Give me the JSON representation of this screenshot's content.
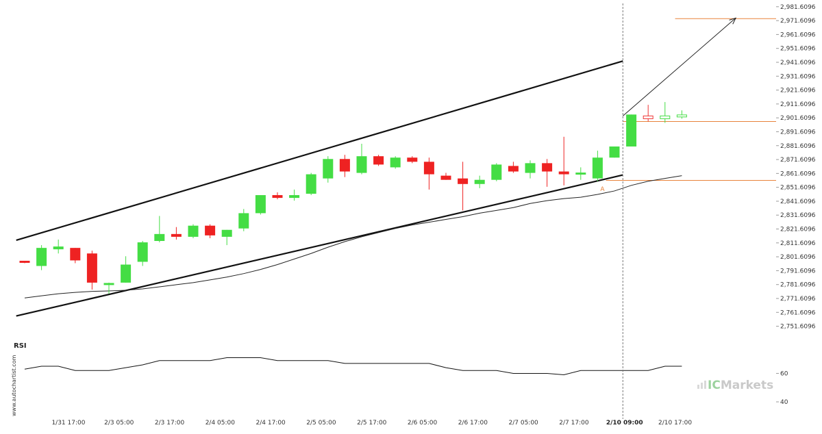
{
  "chart_data": {
    "type": "candlestick",
    "y_ticks": [
      "2,981.6096",
      "2,971.6096",
      "2,961.6096",
      "2,951.6096",
      "2,941.6096",
      "2,931.6096",
      "2,921.6096",
      "2,911.6096",
      "2,901.6096",
      "2,891.6096",
      "2,881.6096",
      "2,871.6096",
      "2,861.6096",
      "2,851.6096",
      "2,841.6096",
      "2,831.6096",
      "2,821.6096",
      "2,811.6096",
      "2,801.6096",
      "2,791.6096",
      "2,781.6096",
      "2,771.6096",
      "2,761.6096",
      "2,751.6096"
    ],
    "ylim": [
      2745,
      2983
    ],
    "x_labels": [
      {
        "text": "1/31 17:00",
        "index": 2.6
      },
      {
        "text": "2/3 05:00",
        "index": 5.6
      },
      {
        "text": "2/3 17:00",
        "index": 8.6
      },
      {
        "text": "2/4 05:00",
        "index": 11.6
      },
      {
        "text": "2/4 17:00",
        "index": 14.6
      },
      {
        "text": "2/5 05:00",
        "index": 17.6
      },
      {
        "text": "2/5 17:00",
        "index": 20.6
      },
      {
        "text": "2/6 05:00",
        "index": 23.6
      },
      {
        "text": "2/6 17:00",
        "index": 26.6
      },
      {
        "text": "2/7 05:00",
        "index": 29.6
      },
      {
        "text": "2/7 17:00",
        "index": 32.6
      },
      {
        "text": "2/10 09:00",
        "index": 35.6,
        "bold": true
      },
      {
        "text": "2/10 17:00",
        "index": 38.6
      }
    ],
    "candles": [
      {
        "o": 2798.5,
        "h": 2798.5,
        "l": 2797.0,
        "c": 2797.5
      },
      {
        "o": 2795,
        "h": 2810,
        "l": 2792,
        "c": 2808
      },
      {
        "o": 2807,
        "h": 2814,
        "l": 2804,
        "c": 2809
      },
      {
        "o": 2808,
        "h": 2808,
        "l": 2797,
        "c": 2799
      },
      {
        "o": 2804,
        "h": 2806,
        "l": 2778,
        "c": 2783
      },
      {
        "o": 2782,
        "h": 2783,
        "l": 2775,
        "c": 2782
      },
      {
        "o": 2783,
        "h": 2802,
        "l": 2783,
        "c": 2796
      },
      {
        "o": 2798,
        "h": 2813,
        "l": 2795,
        "c": 2812
      },
      {
        "o": 2813,
        "h": 2831,
        "l": 2812,
        "c": 2818
      },
      {
        "o": 2818,
        "h": 2823,
        "l": 2814,
        "c": 2816
      },
      {
        "o": 2816,
        "h": 2825,
        "l": 2815,
        "c": 2824
      },
      {
        "o": 2824,
        "h": 2825,
        "l": 2815,
        "c": 2817
      },
      {
        "o": 2816,
        "h": 2821,
        "l": 2810,
        "c": 2821
      },
      {
        "o": 2822,
        "h": 2836,
        "l": 2820,
        "c": 2833
      },
      {
        "o": 2833,
        "h": 2846,
        "l": 2832,
        "c": 2846
      },
      {
        "o": 2846,
        "h": 2848,
        "l": 2843,
        "c": 2844
      },
      {
        "o": 2844,
        "h": 2850,
        "l": 2842,
        "c": 2846
      },
      {
        "o": 2847,
        "h": 2862,
        "l": 2846,
        "c": 2861
      },
      {
        "o": 2858,
        "h": 2874,
        "l": 2855,
        "c": 2872
      },
      {
        "o": 2872,
        "h": 2875,
        "l": 2859,
        "c": 2863
      },
      {
        "o": 2862,
        "h": 2883,
        "l": 2861,
        "c": 2874
      },
      {
        "o": 2874,
        "h": 2875,
        "l": 2867,
        "c": 2868
      },
      {
        "o": 2866,
        "h": 2874,
        "l": 2865,
        "c": 2873
      },
      {
        "o": 2873,
        "h": 2874,
        "l": 2869,
        "c": 2870
      },
      {
        "o": 2870,
        "h": 2873,
        "l": 2850,
        "c": 2861
      },
      {
        "o": 2860,
        "h": 2862,
        "l": 2857,
        "c": 2857
      },
      {
        "o": 2858,
        "h": 2870,
        "l": 2835,
        "c": 2854
      },
      {
        "o": 2854,
        "h": 2860,
        "l": 2851,
        "c": 2857
      },
      {
        "o": 2857,
        "h": 2869,
        "l": 2856,
        "c": 2868
      },
      {
        "o": 2867,
        "h": 2870,
        "l": 2862,
        "c": 2863
      },
      {
        "o": 2862,
        "h": 2871,
        "l": 2858,
        "c": 2869
      },
      {
        "o": 2869,
        "h": 2872,
        "l": 2852,
        "c": 2863
      },
      {
        "o": 2863,
        "h": 2888,
        "l": 2853,
        "c": 2861
      },
      {
        "o": 2861,
        "h": 2866,
        "l": 2857,
        "c": 2862
      },
      {
        "o": 2858,
        "h": 2878,
        "l": 2856,
        "c": 2873
      },
      {
        "o": 2873,
        "h": 2881,
        "l": 2873,
        "c": 2881
      },
      {
        "o": 2881,
        "h": 2904,
        "l": 2881,
        "c": 2904
      },
      {
        "o": 2903,
        "h": 2911,
        "l": 2899,
        "c": 2901
      },
      {
        "o": 2901,
        "h": 2913,
        "l": 2898,
        "c": 2903
      },
      {
        "o": 2903,
        "h": 2907,
        "l": 2901,
        "c": 2903
      }
    ],
    "moving_average": [
      2772,
      2773.5,
      2775,
      2776,
      2776.7,
      2777,
      2777.5,
      2778.5,
      2780,
      2781.5,
      2783,
      2785,
      2787,
      2789.5,
      2792.5,
      2796,
      2800,
      2804,
      2808.5,
      2812.5,
      2816,
      2819,
      2822,
      2824.5,
      2826.5,
      2828.5,
      2830.5,
      2833,
      2835,
      2837,
      2840,
      2842,
      2843.5,
      2844.5,
      2846.5,
      2849,
      2853,
      2856,
      2858,
      2860
    ],
    "channel_upper": [
      {
        "i": -0.5,
        "v": 2813.5
      },
      {
        "i": 35.5,
        "v": 2942.5
      }
    ],
    "channel_lower": [
      {
        "i": -0.5,
        "v": 2759.0
      },
      {
        "i": 35.5,
        "v": 2860.5
      }
    ],
    "target_level": {
      "value": 2973.0,
      "i_from": 38.6,
      "i_to": 47.5
    },
    "current_level": {
      "value": 2899.0,
      "i_from": 35.5,
      "i_to": 47.5
    },
    "support_level": {
      "value": 2856.6,
      "i_from": 34.5,
      "i_to": 47.5
    },
    "forecast_arrow": [
      {
        "i": 35.5,
        "v": 2903
      },
      {
        "i": 42.2,
        "v": 2973.5
      }
    ],
    "vertical_marker_index": 35.5,
    "annotation": {
      "text": "A",
      "i": 34.0,
      "v": 2850.5
    },
    "rsi": {
      "label": "RSI",
      "ticks": [
        "60",
        "40"
      ],
      "tick_values": [
        60,
        40
      ],
      "ylim": [
        28,
        78
      ],
      "values": [
        63,
        65,
        65,
        62,
        62,
        62,
        64,
        66,
        69,
        69,
        69,
        69,
        71,
        71,
        71,
        69,
        69,
        69,
        69,
        67,
        67,
        67,
        67,
        67,
        67,
        64,
        62,
        62,
        62,
        60,
        60,
        60,
        59,
        62,
        62,
        62,
        62,
        62,
        65,
        65
      ]
    }
  },
  "colors": {
    "bull": "#44dd44",
    "bear": "#ee2222",
    "open_candle": "#ee3333",
    "level_line": "#e8823a",
    "channel": "#111111",
    "ma": "#222222",
    "grid_dashed": "#777777"
  },
  "watermark": "www.autochartist.com",
  "brand": {
    "ic": "IC",
    "markets": "Markets"
  }
}
